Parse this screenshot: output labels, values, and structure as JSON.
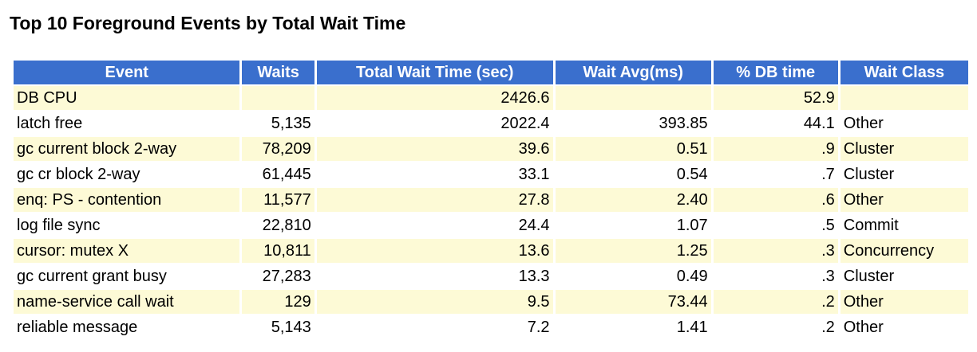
{
  "title": "Top 10 Foreground Events by Total Wait Time",
  "table": {
    "headers": [
      "Event",
      "Waits",
      "Total Wait Time (sec)",
      "Wait Avg(ms)",
      "% DB time",
      "Wait Class"
    ],
    "rows": [
      [
        "DB CPU",
        "",
        "2426.6",
        "",
        "52.9",
        ""
      ],
      [
        "latch free",
        "5,135",
        "2022.4",
        "393.85",
        "44.1",
        "Other"
      ],
      [
        "gc current block 2-way",
        "78,209",
        "39.6",
        "0.51",
        ".9",
        "Cluster"
      ],
      [
        "gc cr block 2-way",
        "61,445",
        "33.1",
        "0.54",
        ".7",
        "Cluster"
      ],
      [
        "enq: PS - contention",
        "11,577",
        "27.8",
        "2.40",
        ".6",
        "Other"
      ],
      [
        "log file sync",
        "22,810",
        "24.4",
        "1.07",
        ".5",
        "Commit"
      ],
      [
        "cursor: mutex X",
        "10,811",
        "13.6",
        "1.25",
        ".3",
        "Concurrency"
      ],
      [
        "gc current grant busy",
        "27,283",
        "13.3",
        "0.49",
        ".3",
        "Cluster"
      ],
      [
        "name-service call wait",
        "129",
        "9.5",
        "73.44",
        ".2",
        "Other"
      ],
      [
        "reliable message",
        "5,143",
        "7.2",
        "1.41",
        ".2",
        "Other"
      ]
    ]
  },
  "colors": {
    "header_background": "#3a6fcd",
    "header_text": "#ffffff",
    "stripe_background": "#fdfad6"
  }
}
